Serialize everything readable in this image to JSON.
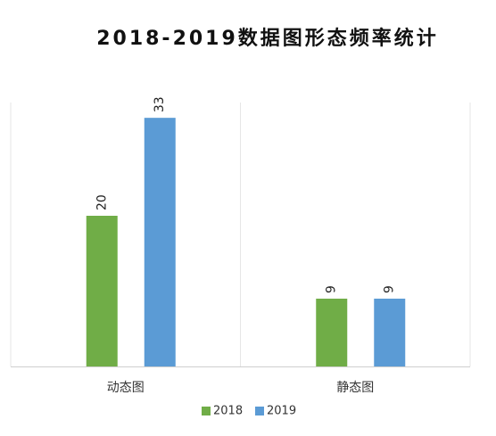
{
  "chart_data": {
    "type": "bar",
    "title": "2018-2019数据图形态频率统计",
    "xlabel": "",
    "ylabel": "",
    "categories": [
      "动态图",
      "静态图"
    ],
    "series": [
      {
        "name": "2018",
        "values": [
          20,
          9
        ],
        "color": "#70AD47"
      },
      {
        "name": "2019",
        "values": [
          33,
          9
        ],
        "color": "#5B9BD5"
      }
    ],
    "ylim": [
      0,
      35
    ],
    "grid": false,
    "legend": "bottom",
    "data_labels": true,
    "data_label_rotation": "vertical"
  }
}
